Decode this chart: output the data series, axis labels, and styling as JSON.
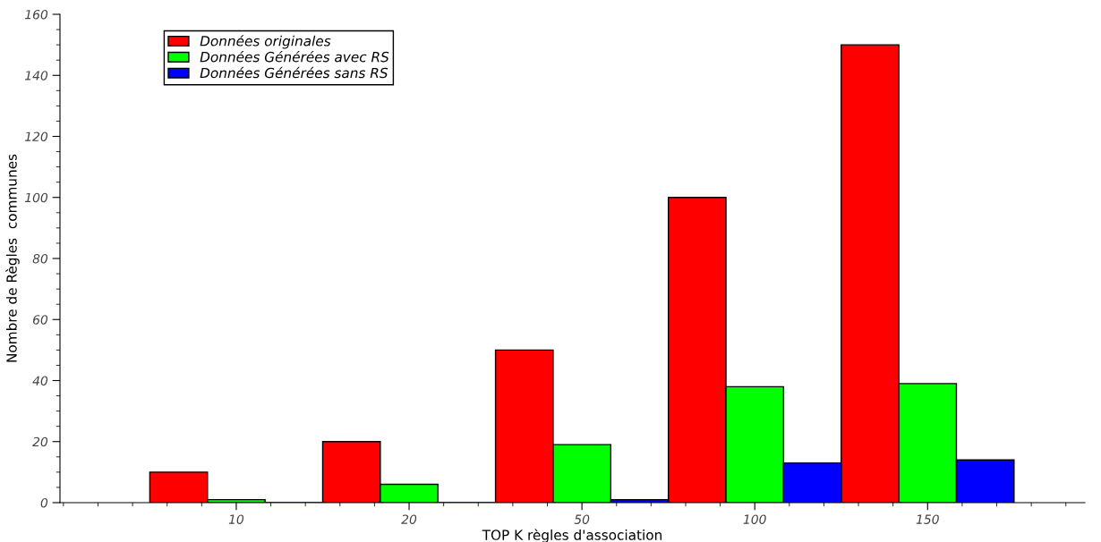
{
  "chart_data": {
    "type": "bar",
    "xlabel": "TOP K règles d'association",
    "ylabel": "Nombre de Règles  communes",
    "categories": [
      "10",
      "20",
      "50",
      "100",
      "150"
    ],
    "series": [
      {
        "name": "Données originales",
        "color": "#ff0000",
        "values": [
          10,
          20,
          50,
          100,
          150
        ]
      },
      {
        "name": "Données Générées avec RS",
        "color": "#00ff00",
        "values": [
          1,
          6,
          19,
          38,
          39
        ]
      },
      {
        "name": "Données Générées sans RS",
        "color": "#0000ff",
        "values": [
          0,
          0,
          1,
          13,
          14
        ]
      }
    ],
    "ylim": [
      0,
      160
    ],
    "yticks": [
      0,
      20,
      40,
      60,
      80,
      100,
      120,
      140,
      160
    ],
    "grid": false,
    "legend": "top left"
  }
}
